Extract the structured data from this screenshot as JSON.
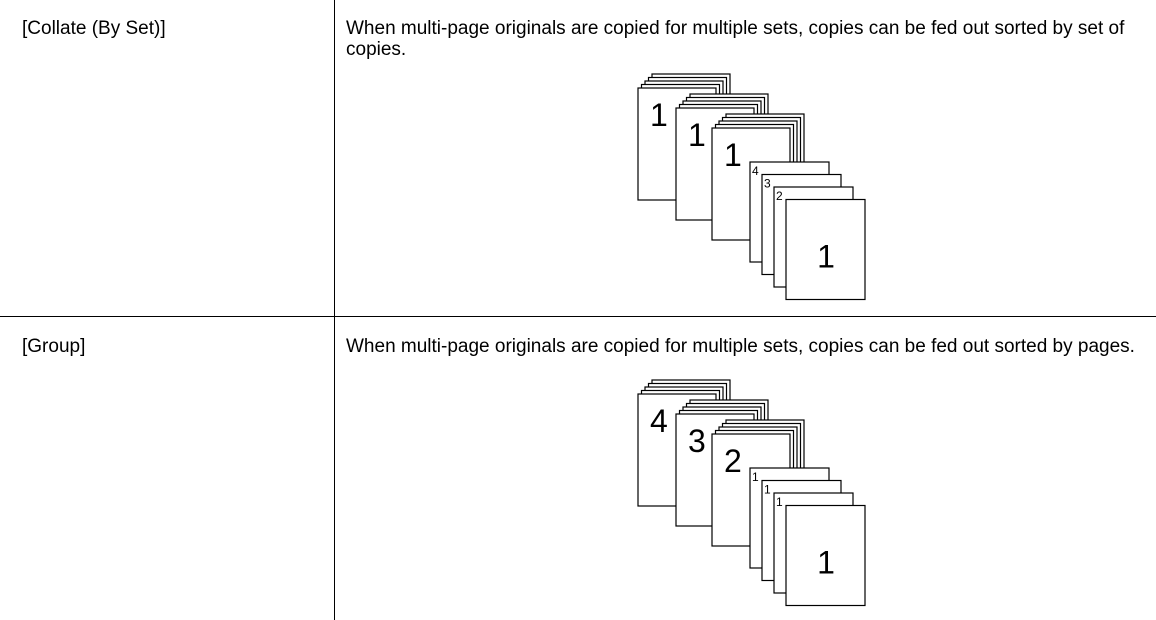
{
  "table": {
    "rows": [
      {
        "label": "[Collate (By Set)]",
        "description": "When multi-page originals are copied for multiple sets, copies can be fed out sorted by set of copies.",
        "illustration": {
          "stacks": [
            "1",
            "1",
            "1"
          ],
          "sheets": [
            "4",
            "3",
            "2",
            "1"
          ]
        }
      },
      {
        "label": "[Group]",
        "description": "When multi-page originals are copied for multiple sets, copies can be fed out sorted by pages.",
        "illustration": {
          "stacks": [
            "4",
            "3",
            "2"
          ],
          "sheets": [
            "1",
            "1",
            "1",
            "1"
          ]
        }
      }
    ]
  }
}
